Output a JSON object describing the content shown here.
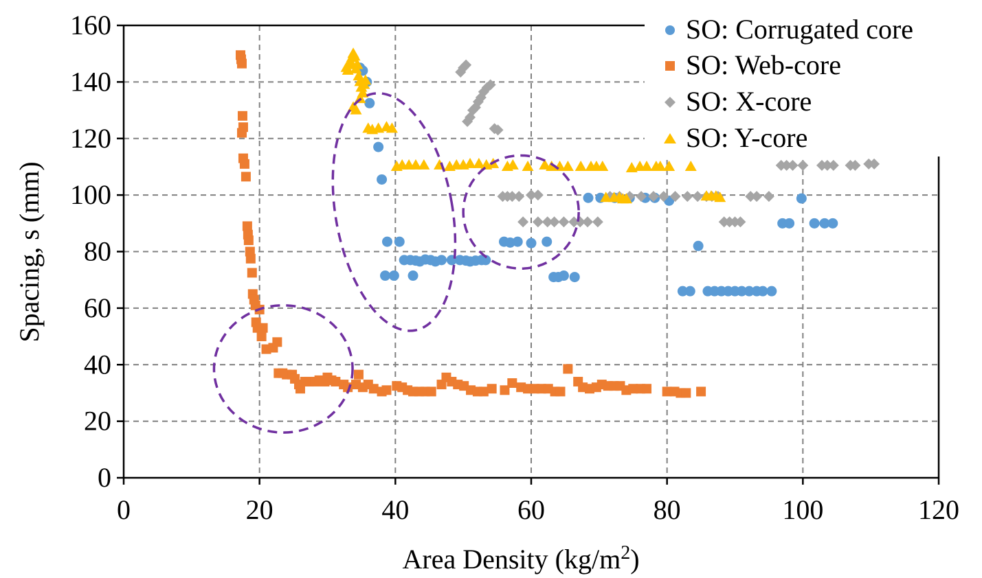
{
  "chart_data": {
    "type": "scatter",
    "title": "",
    "xlabel": "Area Density (kg/m",
    "xlabel_sup": "2",
    "xlabel_tail": ")",
    "ylabel": "Spacing, s (mm)",
    "xlim": [
      0,
      120
    ],
    "ylim": [
      0,
      160
    ],
    "xticks": [
      0,
      20,
      40,
      60,
      80,
      100,
      120
    ],
    "yticks": [
      0,
      20,
      40,
      60,
      80,
      100,
      120,
      140,
      160
    ],
    "grid": true,
    "legend_position": "top-right",
    "colors": {
      "corrugated": "#5B9BD5",
      "web": "#ED7D31",
      "x": "#A5A5A5",
      "y": "#FFC000",
      "ellipse": "#7030A0"
    },
    "series": [
      {
        "name": "SO: Corrugated core",
        "marker": "circle",
        "color": "#5B9BD5",
        "points": [
          [
            34.8,
            145
          ],
          [
            35.2,
            144
          ],
          [
            35.8,
            140
          ],
          [
            36.2,
            132.5
          ],
          [
            37.5,
            117
          ],
          [
            38,
            105.5
          ],
          [
            38.8,
            83.5
          ],
          [
            40.6,
            83.5
          ],
          [
            38.5,
            71.5
          ],
          [
            39.8,
            71.5
          ],
          [
            42.6,
            71.5
          ],
          [
            41.3,
            77
          ],
          [
            42.2,
            77
          ],
          [
            43,
            76.8
          ],
          [
            43.6,
            76.5
          ],
          [
            44.4,
            77.2
          ],
          [
            45.2,
            77
          ],
          [
            45.9,
            76.5
          ],
          [
            46.8,
            77
          ],
          [
            48.3,
            77
          ],
          [
            49.5,
            77
          ],
          [
            50.4,
            76.8
          ],
          [
            51,
            76.5
          ],
          [
            51.8,
            76.8
          ],
          [
            52.7,
            77
          ],
          [
            53.3,
            77
          ],
          [
            56,
            83.5
          ],
          [
            56.9,
            83.2
          ],
          [
            58,
            83.5
          ],
          [
            60,
            83
          ],
          [
            62.3,
            83.5
          ],
          [
            63.3,
            71
          ],
          [
            64,
            71
          ],
          [
            64.8,
            71.5
          ],
          [
            66.4,
            71
          ],
          [
            68.4,
            99
          ],
          [
            70.2,
            99
          ],
          [
            72.3,
            99
          ],
          [
            74.5,
            99
          ],
          [
            76.8,
            99
          ],
          [
            78.2,
            99
          ],
          [
            80.3,
            98
          ],
          [
            84.6,
            82
          ],
          [
            82.3,
            66
          ],
          [
            83.4,
            66
          ],
          [
            86,
            66
          ],
          [
            87,
            66
          ],
          [
            88,
            66
          ],
          [
            89,
            66
          ],
          [
            90,
            66
          ],
          [
            91,
            66
          ],
          [
            92.1,
            66
          ],
          [
            93.2,
            66
          ],
          [
            94.1,
            66
          ],
          [
            95.4,
            66
          ],
          [
            97,
            90
          ],
          [
            98,
            90
          ],
          [
            99.8,
            98.8
          ],
          [
            101.7,
            90
          ],
          [
            103.2,
            90
          ],
          [
            104.4,
            90
          ]
        ]
      },
      {
        "name": "SO: Web-core",
        "marker": "square",
        "color": "#ED7D31",
        "points": [
          [
            17.2,
            149.5
          ],
          [
            17.3,
            148
          ],
          [
            17.4,
            146.5
          ],
          [
            17.5,
            128
          ],
          [
            17.6,
            124
          ],
          [
            17.4,
            122
          ],
          [
            17.6,
            113
          ],
          [
            17.8,
            111
          ],
          [
            18,
            106.5
          ],
          [
            18.2,
            89
          ],
          [
            18.3,
            86
          ],
          [
            18.4,
            84
          ],
          [
            18.6,
            80
          ],
          [
            18.7,
            77.5
          ],
          [
            18.9,
            72.5
          ],
          [
            19,
            65
          ],
          [
            19.2,
            63
          ],
          [
            19.4,
            61
          ],
          [
            20,
            59.5
          ],
          [
            19.5,
            55
          ],
          [
            19.7,
            53
          ],
          [
            20.5,
            53
          ],
          [
            20.3,
            50
          ],
          [
            21,
            45.5
          ],
          [
            22,
            46
          ],
          [
            22.6,
            48
          ],
          [
            22.8,
            37
          ],
          [
            23.4,
            37
          ],
          [
            24,
            36.5
          ],
          [
            24.8,
            36.5
          ],
          [
            25.2,
            35
          ],
          [
            25.8,
            33
          ],
          [
            26,
            31.5
          ],
          [
            26.7,
            34
          ],
          [
            27.3,
            34
          ],
          [
            28.2,
            34
          ],
          [
            28.8,
            34.5
          ],
          [
            29.6,
            34
          ],
          [
            30,
            35.5
          ],
          [
            30.6,
            34.5
          ],
          [
            31.2,
            34
          ],
          [
            32.4,
            33
          ],
          [
            33,
            32
          ],
          [
            34.2,
            33
          ],
          [
            34.6,
            36.5
          ],
          [
            35.2,
            32
          ],
          [
            36,
            33
          ],
          [
            36.8,
            31.5
          ],
          [
            38,
            30.5
          ],
          [
            38.7,
            31
          ],
          [
            40.2,
            32.5
          ],
          [
            41,
            32
          ],
          [
            41.8,
            31
          ],
          [
            42.6,
            30.5
          ],
          [
            43.5,
            30.5
          ],
          [
            44.4,
            30.5
          ],
          [
            45.3,
            30.5
          ],
          [
            46.8,
            33
          ],
          [
            47.5,
            35.5
          ],
          [
            48.3,
            34
          ],
          [
            49.2,
            33
          ],
          [
            50.1,
            32.5
          ],
          [
            51.1,
            31
          ],
          [
            52.1,
            30.5
          ],
          [
            53,
            30.5
          ],
          [
            54.2,
            31.5
          ],
          [
            56.1,
            31
          ],
          [
            57.2,
            33.5
          ],
          [
            58.5,
            32
          ],
          [
            59.5,
            31.5
          ],
          [
            60.5,
            31.5
          ],
          [
            61.5,
            31.5
          ],
          [
            62.5,
            31.5
          ],
          [
            63.5,
            30.5
          ],
          [
            64.3,
            30.5
          ],
          [
            65.4,
            38.5
          ],
          [
            66.9,
            34
          ],
          [
            67.6,
            32
          ],
          [
            68.6,
            31.5
          ],
          [
            69.6,
            32
          ],
          [
            70.4,
            33
          ],
          [
            71.3,
            32.5
          ],
          [
            72.2,
            32.5
          ],
          [
            73.1,
            32.5
          ],
          [
            74,
            31
          ],
          [
            75,
            31.5
          ],
          [
            76.1,
            31.5
          ],
          [
            77,
            31.5
          ],
          [
            80,
            30.5
          ],
          [
            81.1,
            30.5
          ],
          [
            82,
            30
          ],
          [
            82.8,
            30
          ],
          [
            85,
            30.5
          ]
        ]
      },
      {
        "name": "SO: X-core",
        "marker": "diamond",
        "color": "#A5A5A5",
        "points": [
          [
            49.6,
            143.5
          ],
          [
            50,
            145
          ],
          [
            50.4,
            146
          ],
          [
            50.6,
            126
          ],
          [
            51,
            127.5
          ],
          [
            51.4,
            130
          ],
          [
            51.8,
            131
          ],
          [
            52.2,
            133
          ],
          [
            52.6,
            134.5
          ],
          [
            53,
            136.5
          ],
          [
            53.5,
            138
          ],
          [
            54,
            139
          ],
          [
            54.6,
            123.5
          ],
          [
            55.1,
            123
          ],
          [
            55.8,
            99.5
          ],
          [
            56.5,
            99.5
          ],
          [
            57.2,
            99.5
          ],
          [
            58.2,
            99.5
          ],
          [
            60,
            100
          ],
          [
            61,
            100
          ],
          [
            58.8,
            90.5
          ],
          [
            61,
            90.5
          ],
          [
            62.4,
            90.5
          ],
          [
            63.4,
            90.5
          ],
          [
            64.8,
            90.5
          ],
          [
            66.3,
            90.5
          ],
          [
            67.2,
            90.5
          ],
          [
            68.3,
            90.5
          ],
          [
            69.8,
            90.5
          ],
          [
            71.6,
            99.5
          ],
          [
            73,
            99.5
          ],
          [
            74.5,
            99.5
          ],
          [
            76.2,
            99.5
          ],
          [
            78,
            99.5
          ],
          [
            79.5,
            99.5
          ],
          [
            81.2,
            99.5
          ],
          [
            83,
            99.5
          ],
          [
            84.5,
            99.5
          ],
          [
            85.8,
            99.5
          ],
          [
            86.6,
            99.5
          ],
          [
            87.5,
            99.5
          ],
          [
            88.4,
            90.5
          ],
          [
            89.2,
            90.5
          ],
          [
            90,
            90.5
          ],
          [
            90.8,
            90.5
          ],
          [
            92.3,
            99.5
          ],
          [
            93.2,
            99.5
          ],
          [
            95,
            99.5
          ],
          [
            96.8,
            110.5
          ],
          [
            97.6,
            110.5
          ],
          [
            98.5,
            110.5
          ],
          [
            100,
            110.5
          ],
          [
            102.8,
            110.5
          ],
          [
            103.6,
            110.5
          ],
          [
            104.5,
            110.5
          ],
          [
            107,
            110.5
          ],
          [
            107.7,
            110.5
          ],
          [
            109.7,
            111
          ],
          [
            110.5,
            111
          ]
        ]
      },
      {
        "name": "SO: Y-core",
        "marker": "triangle",
        "color": "#FFC000",
        "points": [
          [
            32.8,
            145
          ],
          [
            33,
            144
          ],
          [
            33.2,
            146
          ],
          [
            33.4,
            147
          ],
          [
            33.6,
            148.5
          ],
          [
            33.8,
            150
          ],
          [
            34,
            149
          ],
          [
            34.2,
            144.5
          ],
          [
            34.4,
            146
          ],
          [
            34.6,
            142
          ],
          [
            34.8,
            140
          ],
          [
            35,
            138
          ],
          [
            35.4,
            139
          ],
          [
            35.6,
            140.5
          ],
          [
            33.8,
            131
          ],
          [
            34.2,
            130
          ],
          [
            34.8,
            134
          ],
          [
            35.2,
            136
          ],
          [
            36,
            123.5
          ],
          [
            36.6,
            123
          ],
          [
            37.5,
            123.5
          ],
          [
            38.7,
            124
          ],
          [
            39.5,
            123.5
          ],
          [
            40.2,
            110
          ],
          [
            41,
            110.5
          ],
          [
            42,
            110.5
          ],
          [
            43,
            110.5
          ],
          [
            44.2,
            110.5
          ],
          [
            46.5,
            110.5
          ],
          [
            48,
            110
          ],
          [
            49,
            110.5
          ],
          [
            50,
            110.5
          ],
          [
            51,
            111
          ],
          [
            52.3,
            111
          ],
          [
            53.4,
            110.5
          ],
          [
            54.4,
            111
          ],
          [
            56.5,
            110
          ],
          [
            57.3,
            110.5
          ],
          [
            59.5,
            110
          ],
          [
            62,
            110.5
          ],
          [
            63,
            110
          ],
          [
            64.2,
            110
          ],
          [
            65.4,
            110
          ],
          [
            67.3,
            110
          ],
          [
            68.8,
            110
          ],
          [
            69.6,
            110
          ],
          [
            70.5,
            110
          ],
          [
            74.8,
            109.5
          ],
          [
            76,
            110
          ],
          [
            77,
            110
          ],
          [
            78.4,
            110
          ],
          [
            79,
            110
          ],
          [
            80.3,
            110
          ],
          [
            83.5,
            110
          ],
          [
            71,
            99
          ],
          [
            72.2,
            99
          ],
          [
            73,
            99
          ],
          [
            73.5,
            98.5
          ],
          [
            74,
            98.5
          ],
          [
            85.8,
            99.5
          ],
          [
            86.5,
            99.5
          ],
          [
            87.2,
            99.5
          ],
          [
            87.8,
            99
          ]
        ]
      }
    ],
    "annotations": [
      {
        "shape": "ellipse",
        "cx": 23.5,
        "cy": 38.5,
        "rx": 10.2,
        "ry": 22.5
      },
      {
        "shape": "ellipse",
        "cx": 39.8,
        "cy": 94,
        "rx": 8.6,
        "ry": 42.5,
        "rotate": -10
      },
      {
        "shape": "ellipse",
        "cx": 58.5,
        "cy": 94,
        "rx": 8.5,
        "ry": 20
      }
    ]
  }
}
